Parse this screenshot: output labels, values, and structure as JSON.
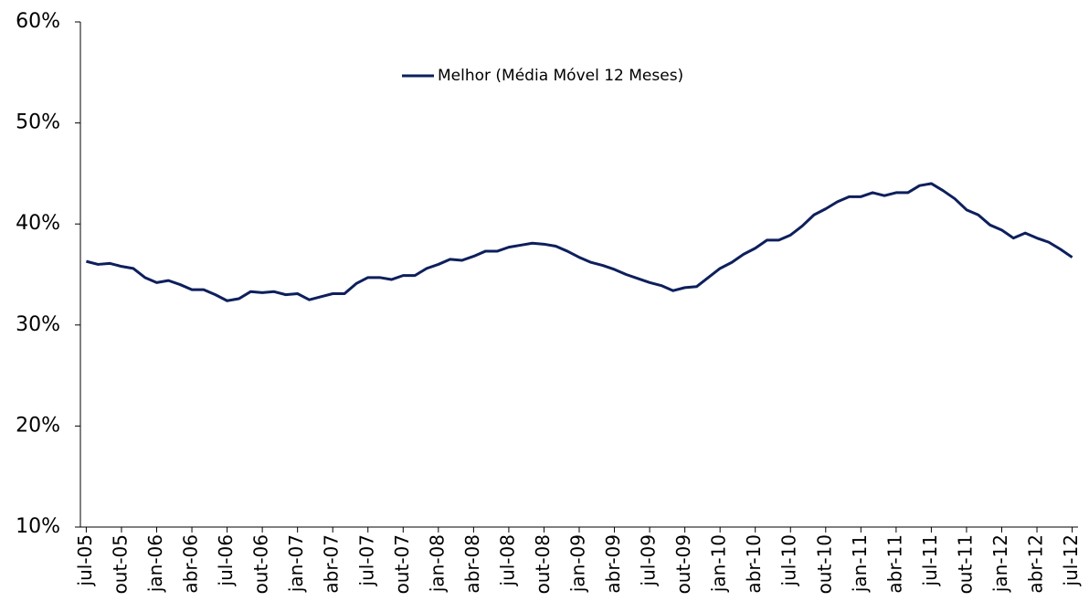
{
  "chart_data": {
    "type": "line",
    "categories": [
      "jul-05",
      null,
      null,
      "out-05",
      null,
      null,
      "jan-06",
      null,
      null,
      "abr-06",
      null,
      null,
      "jul-06",
      null,
      null,
      "out-06",
      null,
      null,
      "jan-07",
      null,
      null,
      "abr-07",
      null,
      null,
      "jul-07",
      null,
      null,
      "out-07",
      null,
      null,
      "jan-08",
      null,
      null,
      "abr-08",
      null,
      null,
      "jul-08",
      null,
      null,
      "out-08",
      null,
      null,
      "jan-09",
      null,
      null,
      "abr-09",
      null,
      null,
      "jul-09",
      null,
      null,
      "out-09",
      null,
      null,
      "jan-10",
      null,
      null,
      "abr-10",
      null,
      null,
      "jul-10",
      null,
      null,
      "out-10",
      null,
      null,
      "jan-11",
      null,
      null,
      "abr-11",
      null,
      null,
      "jul-11",
      null,
      null,
      "out-11",
      null,
      null,
      "jan-12",
      null,
      null,
      "abr-12",
      null,
      null,
      "jul-12"
    ],
    "series": [
      {
        "name": "Melhor (Média Móvel 12 Meses)",
        "color": "#0d1f5c",
        "values": [
          36.3,
          36.0,
          36.1,
          35.8,
          35.6,
          34.7,
          34.2,
          34.4,
          34.0,
          33.5,
          33.5,
          33.0,
          32.4,
          32.6,
          33.3,
          33.2,
          33.3,
          33.0,
          33.1,
          32.5,
          32.8,
          33.1,
          33.1,
          34.1,
          34.7,
          34.7,
          34.5,
          34.9,
          34.9,
          35.6,
          36.0,
          36.5,
          36.4,
          36.8,
          37.3,
          37.3,
          37.7,
          37.9,
          38.1,
          38.0,
          37.8,
          37.3,
          36.7,
          36.2,
          35.9,
          35.5,
          35.0,
          34.6,
          34.2,
          33.9,
          33.4,
          33.7,
          33.8,
          34.7,
          35.6,
          36.2,
          37.0,
          37.6,
          38.4,
          38.4,
          38.9,
          39.8,
          40.9,
          41.5,
          42.2,
          42.7,
          42.7,
          43.1,
          42.8,
          43.1,
          43.1,
          43.8,
          44.0,
          43.3,
          42.5,
          41.4,
          40.9,
          39.9,
          39.4,
          38.6,
          39.1,
          38.6,
          38.2,
          37.5,
          36.7
        ]
      }
    ],
    "ylim": [
      10,
      60
    ],
    "yticks": [
      {
        "value": 10,
        "label": "10%"
      },
      {
        "value": 20,
        "label": "20%"
      },
      {
        "value": 30,
        "label": "30%"
      },
      {
        "value": 40,
        "label": "40%"
      },
      {
        "value": 50,
        "label": "50%"
      },
      {
        "value": 60,
        "label": "60%"
      }
    ],
    "legend": "top"
  }
}
